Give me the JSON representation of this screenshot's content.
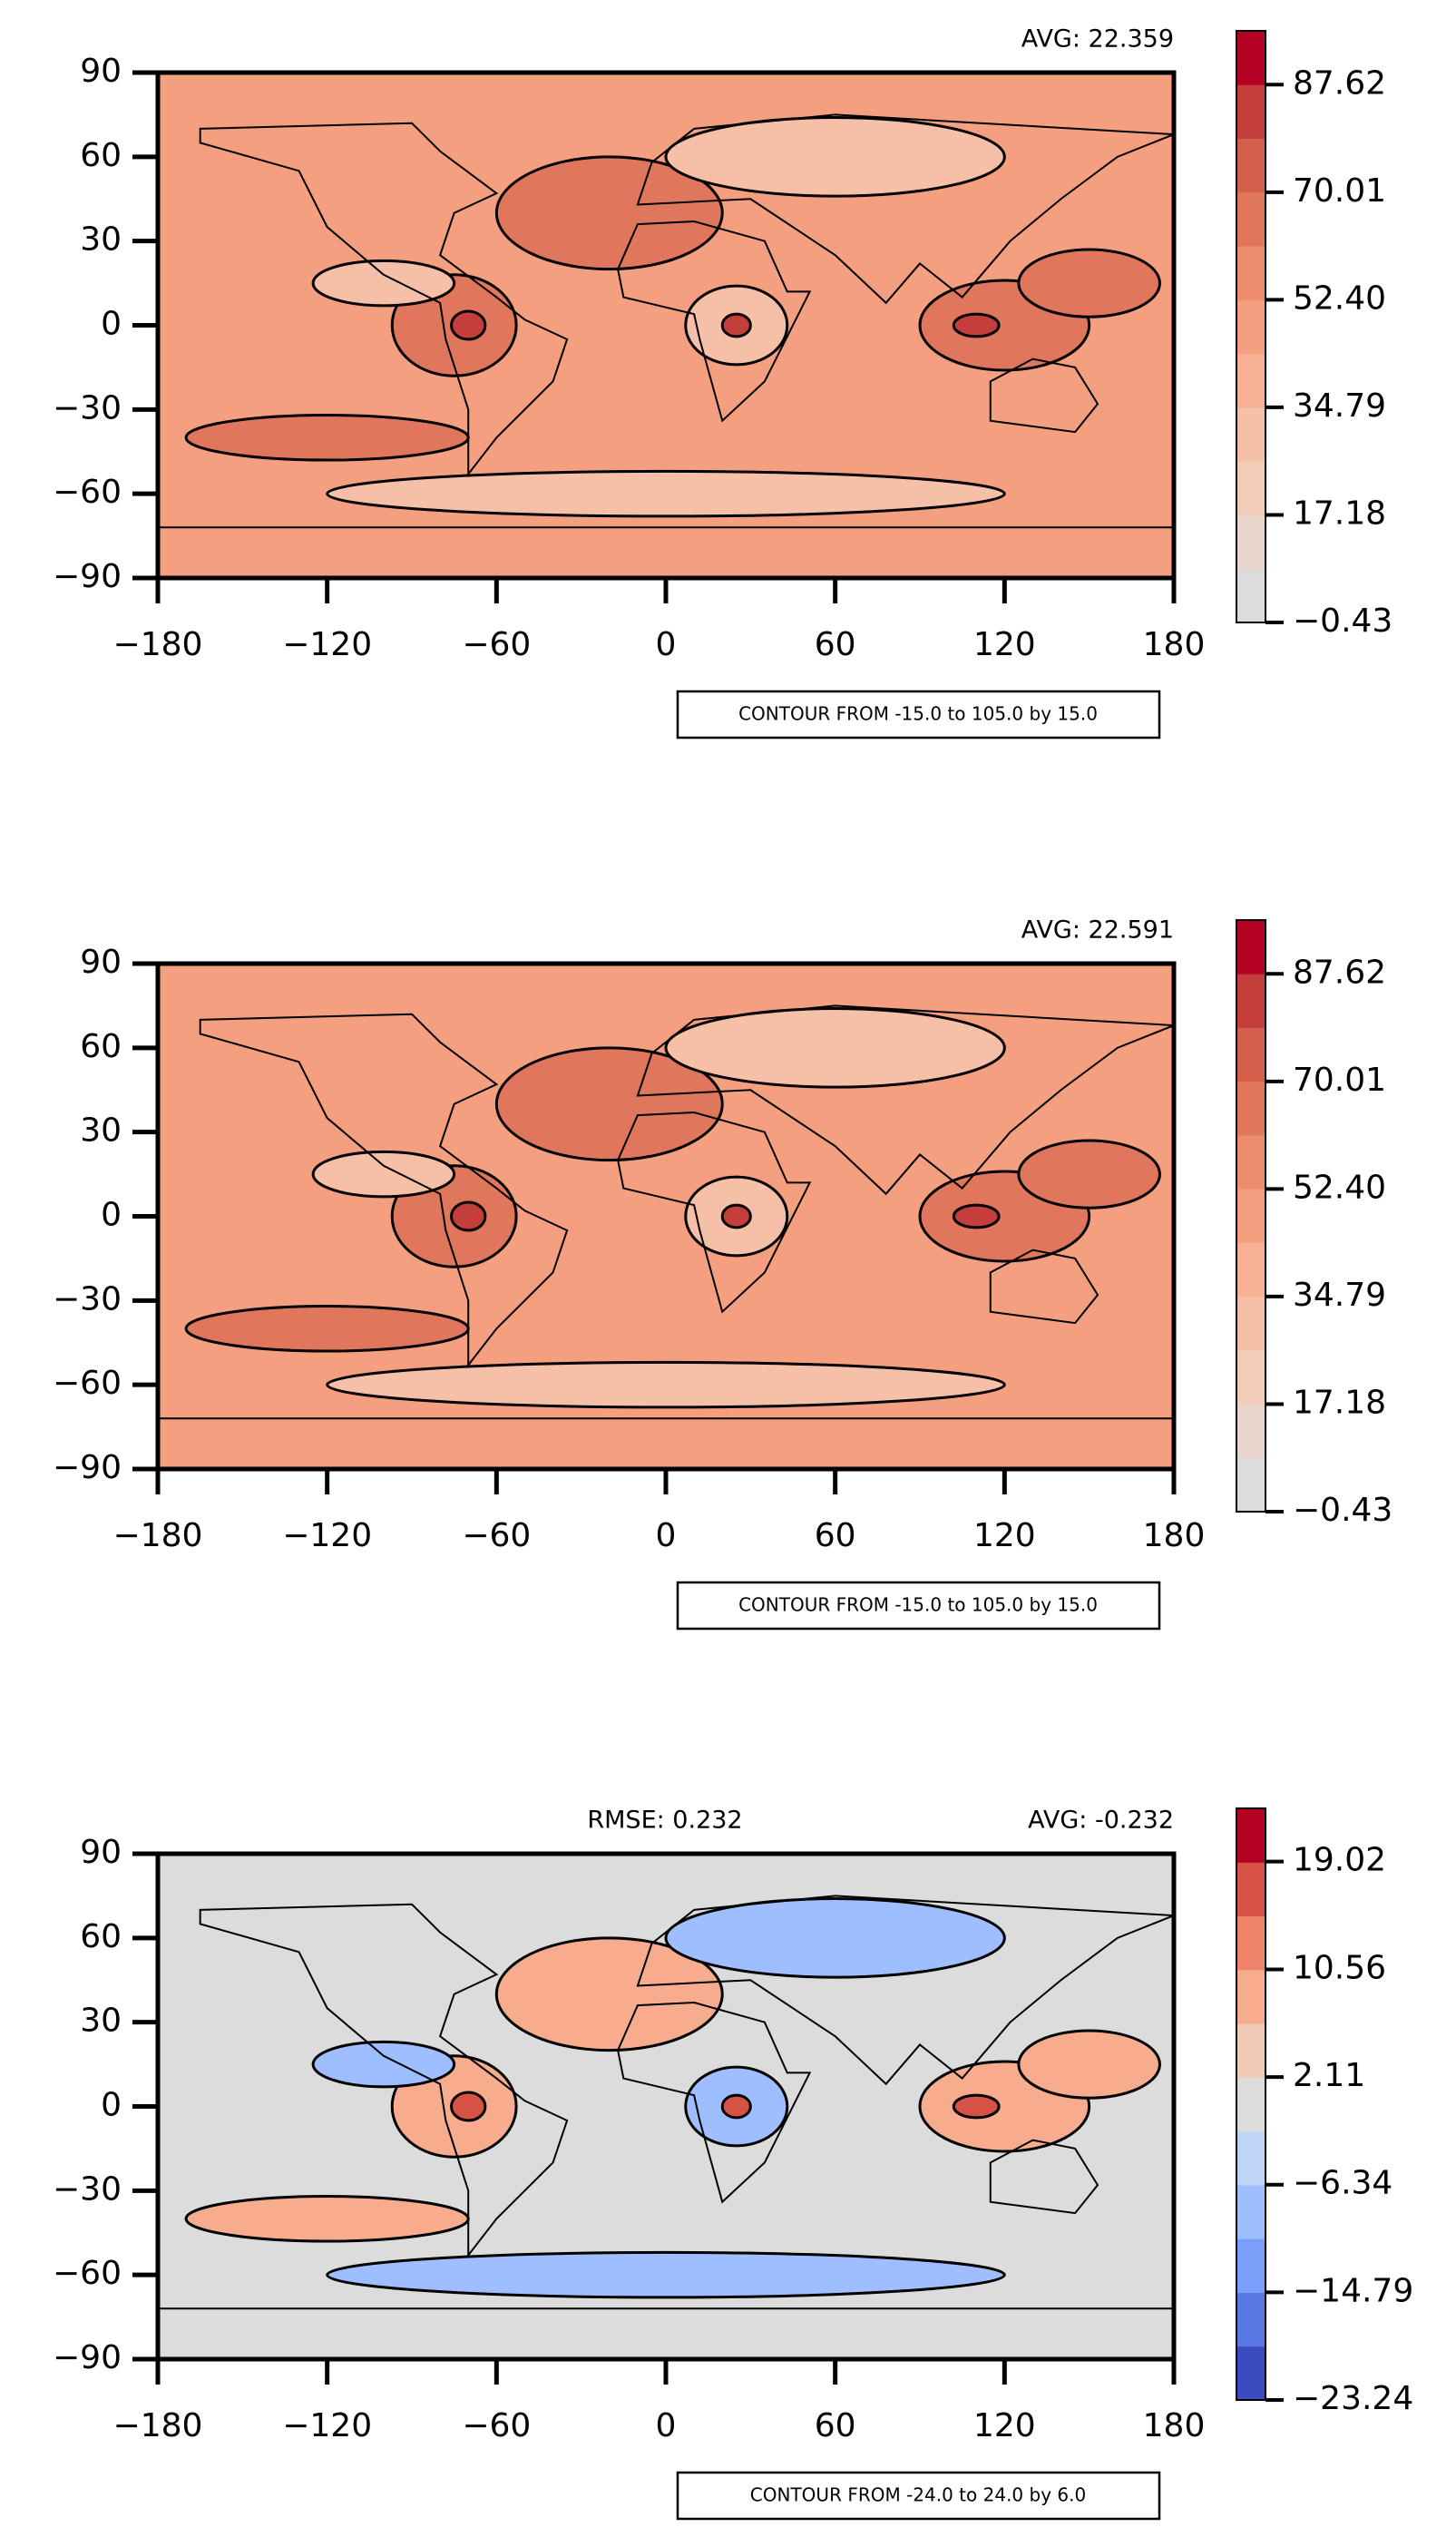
{
  "chart_data": [
    {
      "type": "contour",
      "avg_label": "AVG: 22.359",
      "contour_note": "CONTOUR FROM -15.0 to 105.0 by 15.0",
      "xlim": [
        -180,
        180
      ],
      "xticks": [
        {
          "value": -180,
          "label": "−180"
        },
        {
          "value": -120,
          "label": "−120"
        },
        {
          "value": -60,
          "label": "−60"
        },
        0,
        60,
        120,
        180
      ],
      "ylim": [
        -90,
        90
      ],
      "yticks": [
        {
          "value": -90,
          "label": "−90"
        },
        {
          "value": -60,
          "label": "−60"
        },
        {
          "value": -30,
          "label": "−30"
        },
        0,
        30,
        60,
        90
      ],
      "colorbar": {
        "lim": [
          -0.43,
          96.43
        ],
        "ticks": [
          {
            "value": -0.43,
            "label": "−0.43"
          },
          17.18,
          34.79,
          {
            "value": 52.4,
            "label": "52.40"
          },
          70.01,
          87.62
        ],
        "colors": [
          "#dddcdc",
          "#e8d6cc",
          "#f1cdba",
          "#f5c0a7",
          "#f6b093",
          "#f39f80",
          "#ec8d6d",
          "#e0775c",
          "#d4604c",
          "#c43e3b",
          "#b40426"
        ]
      }
    },
    {
      "type": "contour",
      "avg_label": "AVG: 22.591",
      "contour_note": "CONTOUR FROM -15.0 to 105.0 by 15.0",
      "xlim": [
        -180,
        180
      ],
      "xticks": [
        {
          "value": -180,
          "label": "−180"
        },
        {
          "value": -120,
          "label": "−120"
        },
        {
          "value": -60,
          "label": "−60"
        },
        0,
        60,
        120,
        180
      ],
      "ylim": [
        -90,
        90
      ],
      "yticks": [
        {
          "value": -90,
          "label": "−90"
        },
        {
          "value": -60,
          "label": "−60"
        },
        {
          "value": -30,
          "label": "−30"
        },
        0,
        30,
        60,
        90
      ],
      "colorbar": {
        "lim": [
          -0.43,
          96.43
        ],
        "ticks": [
          {
            "value": -0.43,
            "label": "−0.43"
          },
          17.18,
          34.79,
          {
            "value": 52.4,
            "label": "52.40"
          },
          70.01,
          87.62
        ],
        "colors": [
          "#dddcdc",
          "#e8d6cc",
          "#f1cdba",
          "#f5c0a7",
          "#f6b093",
          "#f39f80",
          "#ec8d6d",
          "#e0775c",
          "#d4604c",
          "#c43e3b",
          "#b40426"
        ]
      }
    },
    {
      "type": "contour",
      "avg_label": "AVG: -0.232",
      "rmse_label": "RMSE: 0.232",
      "contour_note": "CONTOUR FROM -24.0 to 24.0 by 6.0",
      "xlim": [
        -180,
        180
      ],
      "xticks": [
        {
          "value": -180,
          "label": "−180"
        },
        {
          "value": -120,
          "label": "−120"
        },
        {
          "value": -60,
          "label": "−60"
        },
        0,
        60,
        120,
        180
      ],
      "ylim": [
        -90,
        90
      ],
      "yticks": [
        {
          "value": -90,
          "label": "−90"
        },
        {
          "value": -60,
          "label": "−60"
        },
        {
          "value": -30,
          "label": "−30"
        },
        0,
        30,
        60,
        90
      ],
      "colorbar": {
        "lim": [
          -23.24,
          23.2
        ],
        "ticks": [
          {
            "value": -23.24,
            "label": "−23.24"
          },
          {
            "value": -14.79,
            "label": "−14.79"
          },
          {
            "value": -6.34,
            "label": "−6.34"
          },
          2.11,
          10.56,
          19.02
        ],
        "colors": [
          "#3b4cc0",
          "#5a78e4",
          "#7b9ff9",
          "#9ebeff",
          "#c0d4f5",
          "#dddcdc",
          "#f2cbb7",
          "#f7ac8e",
          "#ee8468",
          "#d65244",
          "#b40426"
        ]
      }
    }
  ]
}
